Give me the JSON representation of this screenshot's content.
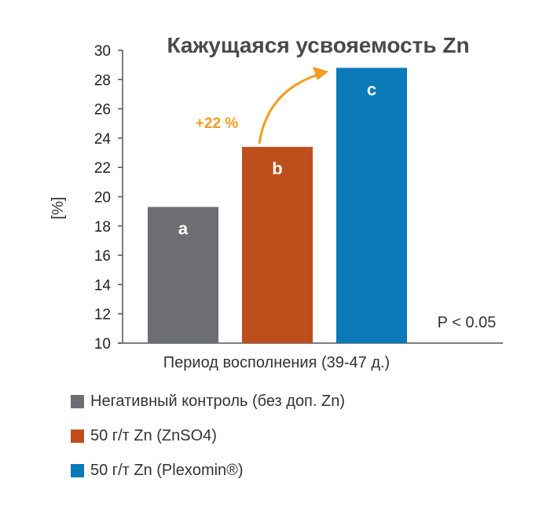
{
  "chart_data": {
    "type": "bar",
    "title": "Кажущаяся усвояемость Zn",
    "ylabel": "[%]",
    "xlabel": "Период восполнения (39-47 д.)",
    "ylim": [
      10,
      30
    ],
    "yticks": [
      10,
      12,
      14,
      16,
      18,
      20,
      22,
      24,
      26,
      28,
      30
    ],
    "grid": false,
    "legend_position": "bottom",
    "series": [
      {
        "name": "Негативный контроль (без доп. Zn)",
        "value": 19.3,
        "letter": "a",
        "color": "#6d6e71"
      },
      {
        "name": "50 г/т Zn (ZnSO4)",
        "value": 23.4,
        "letter": "b",
        "color": "#bf4e1d"
      },
      {
        "name": "50 г/т Zn (Plexomin®)",
        "value": 28.8,
        "letter": "c",
        "color": "#0a7ab8"
      }
    ],
    "annotations": {
      "increase": "+22 %",
      "significance": "P < 0.05",
      "arrow_color": "#f39c1f"
    }
  }
}
